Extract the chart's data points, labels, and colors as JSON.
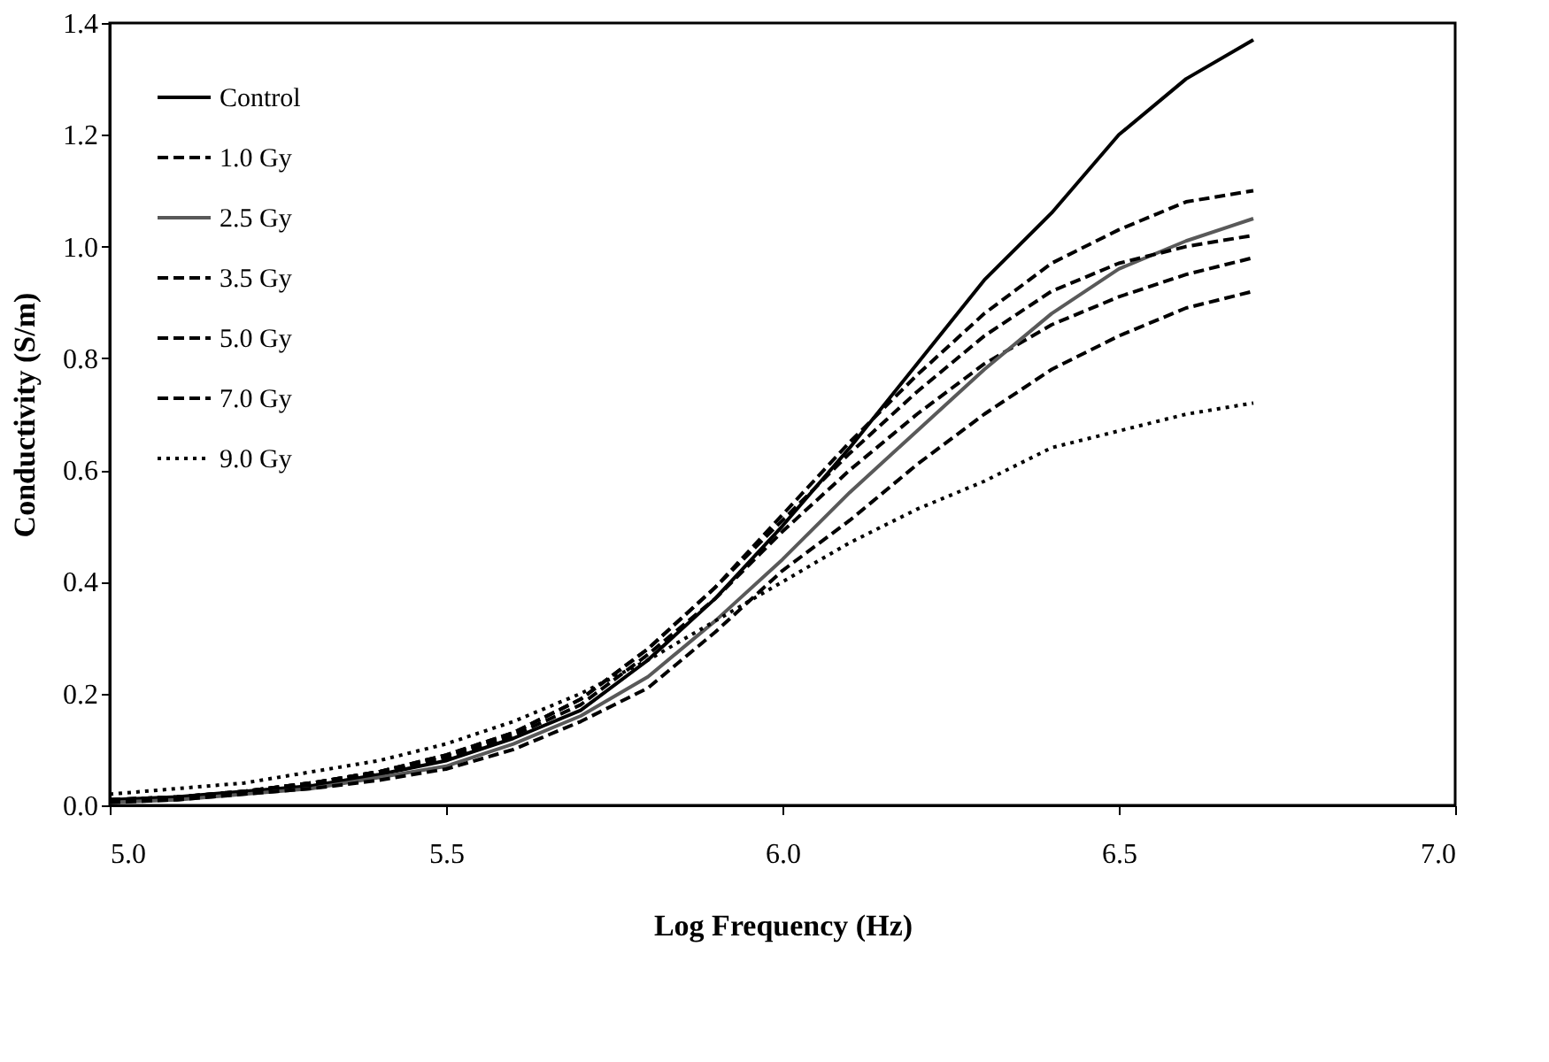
{
  "chart_data": {
    "type": "line",
    "xlabel": "Log Frequency (Hz)",
    "ylabel": "Conductivity (S/m)",
    "x": [
      5.0,
      5.1,
      5.2,
      5.3,
      5.4,
      5.5,
      5.6,
      5.7,
      5.8,
      5.9,
      6.0,
      6.1,
      6.2,
      6.3,
      6.4,
      6.5,
      6.6,
      6.7
    ],
    "series": [
      {
        "name": "Control",
        "color": "#000000",
        "line_style": "solid",
        "values": [
          0.01,
          0.015,
          0.025,
          0.035,
          0.055,
          0.08,
          0.12,
          0.17,
          0.26,
          0.37,
          0.5,
          0.64,
          0.79,
          0.94,
          1.06,
          1.2,
          1.3,
          1.37
        ]
      },
      {
        "name": "1.0 Gy",
        "color": "#000000",
        "line_style": "dashed",
        "values": [
          0.01,
          0.015,
          0.025,
          0.04,
          0.06,
          0.085,
          0.125,
          0.18,
          0.27,
          0.37,
          0.49,
          0.6,
          0.7,
          0.79,
          0.86,
          0.91,
          0.95,
          0.98
        ]
      },
      {
        "name": "2.5 Gy",
        "color": "#595959",
        "line_style": "solid",
        "values": [
          0.005,
          0.01,
          0.02,
          0.03,
          0.05,
          0.07,
          0.11,
          0.16,
          0.23,
          0.33,
          0.44,
          0.56,
          0.67,
          0.78,
          0.88,
          0.96,
          1.01,
          1.05
        ]
      },
      {
        "name": "3.5 Gy",
        "color": "#000000",
        "line_style": "dashed",
        "values": [
          0.01,
          0.015,
          0.025,
          0.04,
          0.06,
          0.09,
          0.13,
          0.19,
          0.28,
          0.39,
          0.51,
          0.63,
          0.74,
          0.84,
          0.92,
          0.97,
          1.0,
          1.02
        ]
      },
      {
        "name": "5.0 Gy",
        "color": "#000000",
        "line_style": "dashed",
        "values": [
          0.01,
          0.015,
          0.025,
          0.04,
          0.06,
          0.09,
          0.13,
          0.19,
          0.28,
          0.39,
          0.52,
          0.65,
          0.77,
          0.88,
          0.97,
          1.03,
          1.08,
          1.1
        ]
      },
      {
        "name": "7.0 Gy",
        "color": "#000000",
        "line_style": "dashed",
        "values": [
          0.005,
          0.01,
          0.02,
          0.03,
          0.045,
          0.065,
          0.1,
          0.15,
          0.21,
          0.31,
          0.42,
          0.51,
          0.61,
          0.7,
          0.78,
          0.84,
          0.89,
          0.92
        ]
      },
      {
        "name": "9.0 Gy",
        "color": "#000000",
        "line_style": "dotted",
        "values": [
          0.02,
          0.03,
          0.04,
          0.06,
          0.08,
          0.11,
          0.15,
          0.2,
          0.26,
          0.33,
          0.4,
          0.47,
          0.53,
          0.58,
          0.64,
          0.67,
          0.7,
          0.72
        ]
      }
    ],
    "xlim": [
      5.0,
      7.0
    ],
    "xticks": [
      {
        "value": 5,
        "label": "5.0"
      },
      5.5,
      {
        "value": 6,
        "label": "6.0"
      },
      6.5,
      {
        "value": 7,
        "label": "7.0"
      }
    ],
    "ylim": [
      0,
      1.4
    ],
    "yticks": [
      {
        "value": 0,
        "label": "0.0"
      },
      0.2,
      0.4,
      0.6,
      0.8,
      {
        "value": 1,
        "label": "1.0"
      },
      1.2,
      1.4
    ],
    "grid": false,
    "legend": "top left",
    "marker": "none"
  }
}
